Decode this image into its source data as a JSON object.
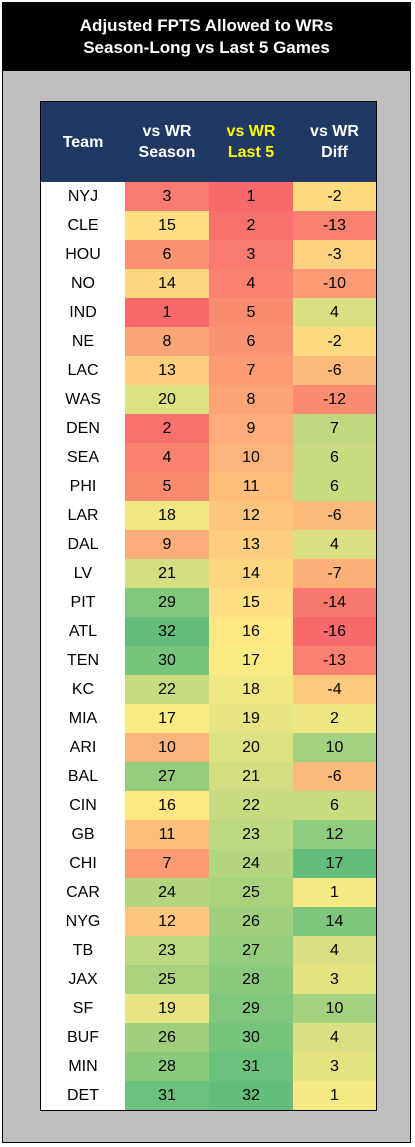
{
  "title": {
    "line1": "Adjusted FPTS Allowed to WRs",
    "line2": "Season-Long vs Last 5 Games"
  },
  "columns": {
    "team": "Team",
    "season": [
      "vs WR",
      "Season"
    ],
    "last5": [
      "vs WR",
      "Last 5"
    ],
    "diff": [
      "vs WR",
      "Diff"
    ]
  },
  "colors": {
    "header_bg": "#1f3864",
    "header_text": "#ffffff",
    "header_highlight": "#ffff00",
    "scale_low": "#f8696b",
    "scale_mid": "#ffeb84",
    "scale_high": "#63be7b"
  },
  "chart_data": {
    "type": "table",
    "title": "Adjusted FPTS Allowed to WRs / Season-Long vs Last 5 Games",
    "columns": [
      "Team",
      "vs WR Season",
      "vs WR Last 5",
      "vs WR Diff"
    ],
    "rows": [
      {
        "team": "NYJ",
        "season": 3,
        "last5": 1,
        "diff": -2
      },
      {
        "team": "CLE",
        "season": 15,
        "last5": 2,
        "diff": -13
      },
      {
        "team": "HOU",
        "season": 6,
        "last5": 3,
        "diff": -3
      },
      {
        "team": "NO",
        "season": 14,
        "last5": 4,
        "diff": -10
      },
      {
        "team": "IND",
        "season": 1,
        "last5": 5,
        "diff": 4
      },
      {
        "team": "NE",
        "season": 8,
        "last5": 6,
        "diff": -2
      },
      {
        "team": "LAC",
        "season": 13,
        "last5": 7,
        "diff": -6
      },
      {
        "team": "WAS",
        "season": 20,
        "last5": 8,
        "diff": -12
      },
      {
        "team": "DEN",
        "season": 2,
        "last5": 9,
        "diff": 7
      },
      {
        "team": "SEA",
        "season": 4,
        "last5": 10,
        "diff": 6
      },
      {
        "team": "PHI",
        "season": 5,
        "last5": 11,
        "diff": 6
      },
      {
        "team": "LAR",
        "season": 18,
        "last5": 12,
        "diff": -6
      },
      {
        "team": "DAL",
        "season": 9,
        "last5": 13,
        "diff": 4
      },
      {
        "team": "LV",
        "season": 21,
        "last5": 14,
        "diff": -7
      },
      {
        "team": "PIT",
        "season": 29,
        "last5": 15,
        "diff": -14
      },
      {
        "team": "ATL",
        "season": 32,
        "last5": 16,
        "diff": -16
      },
      {
        "team": "TEN",
        "season": 30,
        "last5": 17,
        "diff": -13
      },
      {
        "team": "KC",
        "season": 22,
        "last5": 18,
        "diff": -4
      },
      {
        "team": "MIA",
        "season": 17,
        "last5": 19,
        "diff": 2
      },
      {
        "team": "ARI",
        "season": 10,
        "last5": 20,
        "diff": 10
      },
      {
        "team": "BAL",
        "season": 27,
        "last5": 21,
        "diff": -6
      },
      {
        "team": "CIN",
        "season": 16,
        "last5": 22,
        "diff": 6
      },
      {
        "team": "GB",
        "season": 11,
        "last5": 23,
        "diff": 12
      },
      {
        "team": "CHI",
        "season": 7,
        "last5": 24,
        "diff": 17
      },
      {
        "team": "CAR",
        "season": 24,
        "last5": 25,
        "diff": 1
      },
      {
        "team": "NYG",
        "season": 12,
        "last5": 26,
        "diff": 14
      },
      {
        "team": "TB",
        "season": 23,
        "last5": 27,
        "diff": 4
      },
      {
        "team": "JAX",
        "season": 25,
        "last5": 28,
        "diff": 3
      },
      {
        "team": "SF",
        "season": 19,
        "last5": 29,
        "diff": 10
      },
      {
        "team": "BUF",
        "season": 26,
        "last5": 30,
        "diff": 4
      },
      {
        "team": "MIN",
        "season": 28,
        "last5": 31,
        "diff": 3
      },
      {
        "team": "DET",
        "season": 31,
        "last5": 32,
        "diff": 1
      }
    ]
  }
}
